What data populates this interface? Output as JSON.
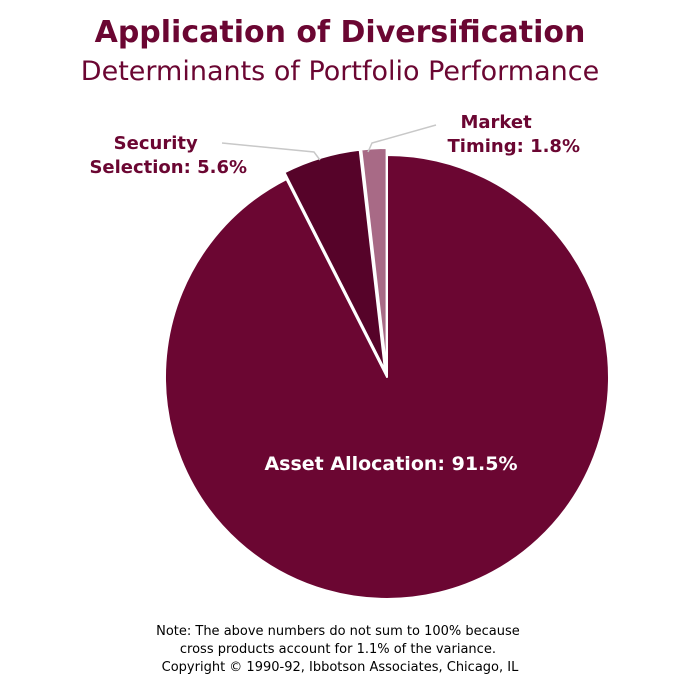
{
  "chart_data": {
    "type": "pie",
    "title": "Application of Diversification",
    "subtitle": "Determinants of Portfolio Performance",
    "slices": [
      {
        "label": "Asset Allocation: 91.5%",
        "value": 91.5,
        "color": "#6b0632",
        "label_color": "#ffffff"
      },
      {
        "label_lines": [
          "Security",
          "Selection: 5.6%"
        ],
        "value": 5.6,
        "color": "#560329",
        "label_color": "#6b0632"
      },
      {
        "label_lines": [
          "Market",
          "Timing: 1.8%"
        ],
        "value": 1.8,
        "color": "#a86a86",
        "label_color": "#6b0632"
      }
    ],
    "note_lines": [
      "Note: The above numbers do not sum to 100% because",
      "cross products account for 1.1% of the variance.",
      "Copyright © 1990-92, Ibbotson Associates, Chicago, IL"
    ]
  },
  "colors": {
    "title": "#6b0632",
    "leader_line": "#c8c8c8",
    "slice_border": "#ffffff",
    "note": "#000000"
  }
}
